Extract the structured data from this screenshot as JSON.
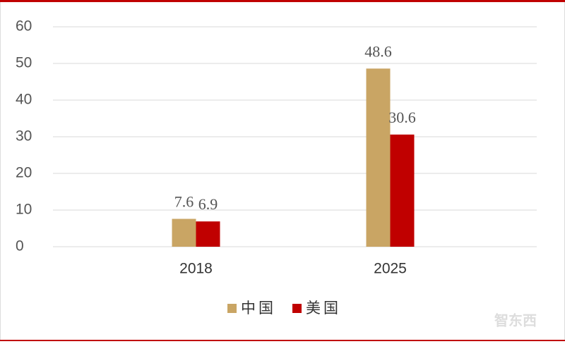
{
  "chart_data": {
    "type": "bar",
    "categories": [
      "2018",
      "2025"
    ],
    "series": [
      {
        "name": "中国",
        "color": "#c9a564",
        "values": [
          7.6,
          48.6
        ]
      },
      {
        "name": "美国",
        "color": "#c00000",
        "values": [
          6.9,
          30.6
        ]
      }
    ],
    "ylim": [
      0,
      60
    ],
    "yticks": [
      0,
      10,
      20,
      30,
      40,
      50,
      60
    ],
    "grid": true,
    "legend": "bottom",
    "watermark": "智东西"
  }
}
